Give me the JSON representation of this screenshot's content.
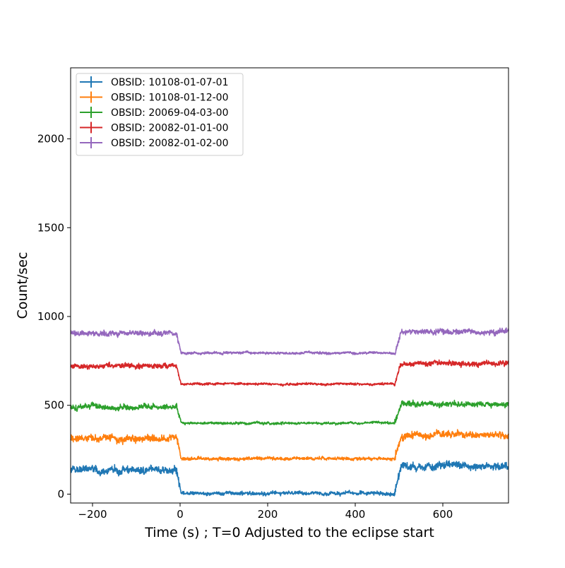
{
  "chart_data": {
    "type": "line",
    "title": "",
    "xlabel": "Time (s) ; T=0 Adjusted to the eclipse start",
    "ylabel": "Count/sec",
    "xlim": [
      -250,
      750
    ],
    "ylim": [
      -50,
      2400
    ],
    "xticks": [
      -200,
      0,
      200,
      400,
      600
    ],
    "yticks": [
      0,
      500,
      1000,
      1500,
      2000
    ],
    "grid": false,
    "legend_position": "top-left",
    "eclipse": {
      "ingress_start": -8,
      "ingress_end": 2,
      "egress_start": 490,
      "egress_end": 505
    },
    "series": [
      {
        "name": "OBSID: 10108-01-07-01",
        "color": "#1f77b4",
        "out_level": 135,
        "out_level_after": 160,
        "in_level": 5,
        "noise": 22
      },
      {
        "name": "OBSID: 10108-01-12-00",
        "color": "#ff7f0e",
        "out_level": 315,
        "out_level_after": 330,
        "in_level": 200,
        "noise": 20
      },
      {
        "name": "OBSID: 20069-04-03-00",
        "color": "#2ca02c",
        "out_level": 490,
        "out_level_after": 505,
        "in_level": 400,
        "noise": 15
      },
      {
        "name": "OBSID: 20082-01-01-00",
        "color": "#d62728",
        "out_level": 720,
        "out_level_after": 735,
        "in_level": 620,
        "noise": 14
      },
      {
        "name": "OBSID: 20082-01-02-00",
        "color": "#9467bd",
        "out_level": 905,
        "out_level_after": 915,
        "in_level": 795,
        "noise": 15
      }
    ]
  }
}
